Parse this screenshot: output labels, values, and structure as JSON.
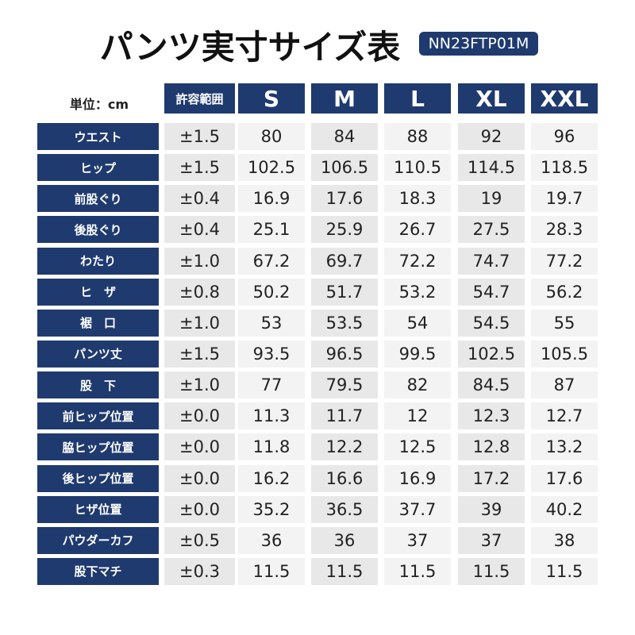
{
  "header": {
    "title": "パンツ実寸サイズ表",
    "code": "NN23FTP01M"
  },
  "table": {
    "unit": "単位：cm",
    "columns": [
      "許容範囲",
      "S",
      "M",
      "L",
      "XL",
      "XXL"
    ],
    "rows": [
      [
        "ウエスト",
        "±1.5",
        "80",
        "84",
        "88",
        "92",
        "96"
      ],
      [
        "ヒップ",
        "±1.5",
        "102.5",
        "106.5",
        "110.5",
        "114.5",
        "118.5"
      ],
      [
        "前股ぐり",
        "±0.4",
        "16.9",
        "17.6",
        "18.3",
        "19",
        "19.7"
      ],
      [
        "後股ぐり",
        "±0.4",
        "25.1",
        "25.9",
        "26.7",
        "27.5",
        "28.3"
      ],
      [
        "わたり",
        "±1.0",
        "67.2",
        "69.7",
        "72.2",
        "74.7",
        "77.2"
      ],
      [
        "ヒ　ザ",
        "±0.8",
        "50.2",
        "51.7",
        "53.2",
        "54.7",
        "56.2"
      ],
      [
        "裾　口",
        "±1.0",
        "53",
        "53.5",
        "54",
        "54.5",
        "55"
      ],
      [
        "パンツ丈",
        "±1.5",
        "93.5",
        "96.5",
        "99.5",
        "102.5",
        "105.5"
      ],
      [
        "股　下",
        "±1.0",
        "77",
        "79.5",
        "82",
        "84.5",
        "87"
      ],
      [
        "前ヒップ位置",
        "±0.0",
        "11.3",
        "11.7",
        "12",
        "12.3",
        "12.7"
      ],
      [
        "脇ヒップ位置",
        "±0.0",
        "11.8",
        "12.2",
        "12.5",
        "12.8",
        "13.2"
      ],
      [
        "後ヒップ位置",
        "±0.0",
        "16.2",
        "16.6",
        "16.9",
        "17.2",
        "17.6"
      ],
      [
        "ヒザ位置",
        "±0.0",
        "35.2",
        "36.5",
        "37.7",
        "39",
        "40.2"
      ],
      [
        "パウダーカフ",
        "±0.5",
        "36",
        "36",
        "37",
        "37",
        "38"
      ],
      [
        "股下マチ",
        "±0.3",
        "11.5",
        "11.5",
        "11.5",
        "11.5",
        "11.5"
      ]
    ]
  }
}
